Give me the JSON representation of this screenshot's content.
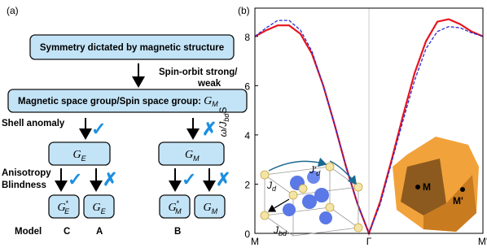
{
  "panel_a": {
    "label": "(a)",
    "top_box": "Symmetry dictated by magnetic structure",
    "arrow_label": [
      "Spin-orbit strong/",
      "weak"
    ],
    "group_box": {
      "text": "Magnetic space group/Spin space group: ",
      "symbol": "G",
      "sub": "M"
    },
    "shell_label": "Shell anomaly",
    "aniso_label": [
      "Anisotropy",
      "Blindness"
    ],
    "check": "✓",
    "cross": "✗",
    "mid_boxes": [
      {
        "symbol": "G",
        "sub": "E"
      },
      {
        "symbol": "G",
        "sub": "M"
      }
    ],
    "leaf_boxes": [
      {
        "symbol": "G",
        "sup": "*",
        "sub": "E"
      },
      {
        "symbol": "G",
        "sub": "E"
      },
      {
        "symbol": "G",
        "sup": "*",
        "sub": "M"
      },
      {
        "symbol": "G",
        "sub": "M"
      }
    ],
    "model_label": "Model",
    "models": [
      "C",
      "A",
      "B"
    ]
  },
  "chart_data": {
    "type": "line",
    "panel_label": "(b)",
    "ylabel": {
      "main": "ω/J",
      "sub": "bd",
      "tail": "S"
    },
    "x": [
      0,
      0.1,
      0.2,
      0.3,
      0.4,
      0.5,
      0.6,
      0.7,
      0.8,
      0.9,
      1.0,
      1.1,
      1.2,
      1.3,
      1.4,
      1.5,
      1.6,
      1.7,
      1.8,
      1.9,
      2.0
    ],
    "series": [
      {
        "color": "#e8141e",
        "dash": false,
        "values": [
          8.0,
          8.25,
          8.45,
          8.45,
          8.1,
          7.3,
          6.0,
          4.4,
          2.7,
          1.2,
          0,
          1.3,
          3.0,
          4.8,
          6.5,
          7.8,
          8.6,
          8.7,
          8.5,
          8.2,
          8.0
        ]
      },
      {
        "color": "#2a2ad0",
        "dash": true,
        "values": [
          8.0,
          8.35,
          8.65,
          8.65,
          8.25,
          7.4,
          6.0,
          4.4,
          2.7,
          1.2,
          0,
          1.2,
          2.9,
          4.6,
          6.2,
          7.5,
          8.2,
          8.4,
          8.35,
          8.15,
          8.0
        ]
      }
    ],
    "xlim": [
      0,
      2
    ],
    "xticks": [
      {
        "value": 0,
        "label": "M"
      },
      {
        "value": 1,
        "label": "Γ"
      },
      {
        "value": 2,
        "label": "M'"
      }
    ],
    "ylim": [
      0,
      9.15
    ],
    "yticks": [
      0,
      2,
      4,
      6,
      8
    ],
    "inset_labels": [
      {
        "text": "J",
        "sub": "d"
      },
      {
        "text": "J′",
        "sub": "d"
      },
      {
        "text": "J",
        "sub": "bd"
      }
    ],
    "bz_labels": [
      "M",
      "M'"
    ]
  }
}
